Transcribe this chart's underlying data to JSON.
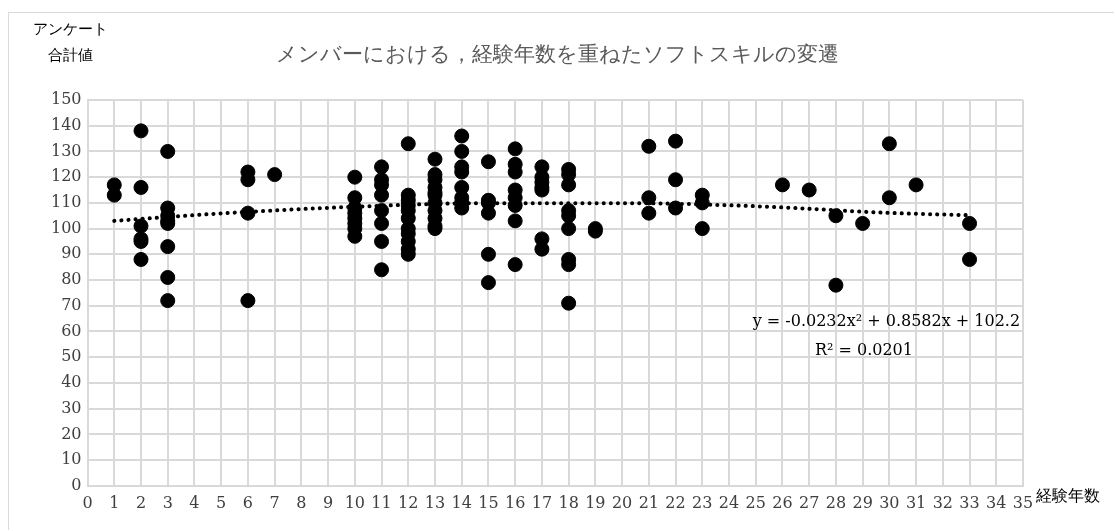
{
  "chart_data": {
    "type": "scatter",
    "title": "メンバーにおける，経験年数を重ねたソフトスキルの変遷",
    "xlabel": "経験年数",
    "ylabel": "アンケート合計値",
    "xlim": [
      0,
      35
    ],
    "xticks": [
      0,
      1,
      2,
      3,
      4,
      5,
      6,
      7,
      8,
      9,
      10,
      11,
      12,
      13,
      14,
      15,
      16,
      17,
      18,
      19,
      20,
      21,
      22,
      23,
      24,
      25,
      26,
      27,
      28,
      29,
      30,
      31,
      32,
      33,
      34,
      35
    ],
    "ylim": [
      0,
      150
    ],
    "yticks": [
      0,
      10,
      20,
      30,
      40,
      50,
      60,
      70,
      80,
      90,
      100,
      110,
      120,
      130,
      140,
      150
    ],
    "grid": true,
    "legend": false,
    "marker": "circle",
    "series": [
      {
        "color": "#000000",
        "x": [
          1,
          1,
          2,
          2,
          2,
          2,
          2,
          2,
          3,
          3,
          3,
          3,
          3,
          3,
          3,
          3,
          6,
          6,
          6,
          6,
          7,
          10,
          10,
          10,
          10,
          10,
          10,
          10,
          10,
          11,
          11,
          11,
          11,
          11,
          11,
          11,
          11,
          12,
          12,
          12,
          12,
          12,
          12,
          12,
          12,
          12,
          12,
          12,
          13,
          13,
          13,
          13,
          13,
          13,
          13,
          13,
          13,
          13,
          13,
          14,
          14,
          14,
          14,
          14,
          14,
          14,
          14,
          15,
          15,
          15,
          15,
          15,
          15,
          16,
          16,
          16,
          16,
          16,
          16,
          16,
          16,
          17,
          17,
          17,
          17,
          17,
          17,
          17,
          18,
          18,
          18,
          18,
          18,
          18,
          18,
          18,
          18,
          19,
          19,
          21,
          21,
          21,
          22,
          22,
          22,
          23,
          23,
          23,
          26,
          27,
          28,
          28,
          29,
          30,
          30,
          31,
          33,
          33
        ],
        "values": [
          117,
          113,
          138,
          116,
          101,
          96,
          95,
          88,
          130,
          108,
          105,
          103,
          102,
          93,
          81,
          72,
          122,
          119,
          106,
          72,
          121,
          120,
          112,
          108,
          106,
          104,
          102,
          100,
          97,
          124,
          119,
          117,
          113,
          107,
          102,
          95,
          84,
          133,
          113,
          111,
          109,
          107,
          104,
          100,
          98,
          95,
          92,
          90,
          127,
          121,
          119,
          116,
          114,
          113,
          110,
          107,
          104,
          101,
          100,
          136,
          130,
          124,
          122,
          116,
          112,
          110,
          108,
          126,
          111,
          110,
          106,
          90,
          79,
          131,
          125,
          122,
          115,
          112,
          109,
          103,
          86,
          124,
          120,
          118,
          116,
          115,
          96,
          92,
          123,
          121,
          117,
          107,
          105,
          100,
          88,
          86,
          71,
          100,
          99,
          132,
          112,
          106,
          134,
          119,
          108,
          113,
          110,
          100,
          117,
          115,
          105,
          78,
          102,
          133,
          112,
          117,
          102,
          88
        ]
      },
      {
        "type": "line",
        "color": "#000000",
        "line_style": "dotted",
        "marker": "none",
        "x": [
          1,
          5,
          10,
          15,
          20,
          25,
          30,
          33
        ],
        "values": [
          103.0,
          105.9,
          108.5,
          109.9,
          109.9,
          108.7,
          106.1,
          105.2
        ]
      }
    ],
    "annotations": [
      "y = -0.0232x² + 0.8582x + 102.2",
      "R² = 0.0201"
    ]
  }
}
